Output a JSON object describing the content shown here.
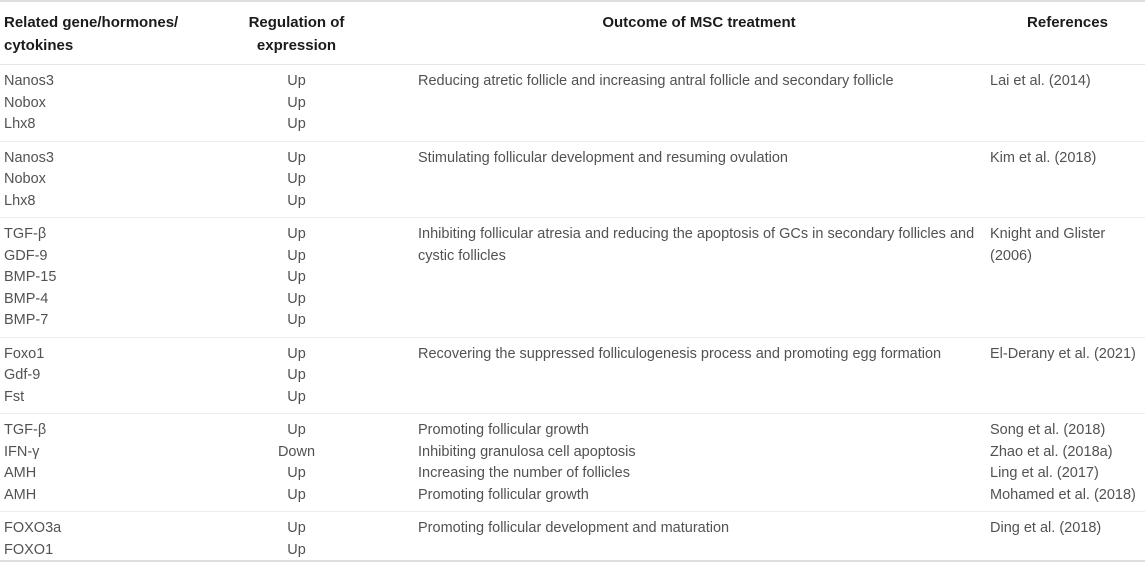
{
  "header": {
    "col1": "Related gene/hormones/\ncytokines",
    "col2": "Regulation of\nexpression",
    "col3": "Outcome of MSC treatment",
    "col4": "References"
  },
  "groups": [
    {
      "genes": [
        "Nanos3",
        "Nobox",
        "Lhx8"
      ],
      "regulation": [
        "Up",
        "Up",
        "Up"
      ],
      "outcomes": [
        "Reducing atretic follicle and increasing antral follicle and secondary follicle"
      ],
      "references": [
        "Lai et al. (2014)"
      ]
    },
    {
      "genes": [
        "Nanos3",
        "Nobox",
        "Lhx8"
      ],
      "regulation": [
        "Up",
        "Up",
        "Up"
      ],
      "outcomes": [
        "Stimulating follicular development and resuming ovulation"
      ],
      "references": [
        "Kim et al. (2018)"
      ]
    },
    {
      "genes": [
        "TGF-β",
        "GDF-9",
        "BMP-15",
        "BMP-4",
        "BMP-7"
      ],
      "regulation": [
        "Up",
        "Up",
        "Up",
        "Up",
        "Up"
      ],
      "outcomes": [
        "Inhibiting follicular atresia and reducing the apoptosis of GCs in secondary follicles and cystic follicles"
      ],
      "references": [
        "Knight and Glister (2006)"
      ]
    },
    {
      "genes": [
        "Foxo1",
        "Gdf-9",
        "Fst"
      ],
      "regulation": [
        "Up",
        "Up",
        "Up"
      ],
      "outcomes": [
        "Recovering the suppressed folliculogenesis process and promoting egg formation"
      ],
      "references": [
        "El-Derany et al. (2021)"
      ]
    },
    {
      "genes": [
        "TGF-β",
        "IFN-γ",
        "AMH",
        "AMH"
      ],
      "regulation": [
        "Up",
        "Down",
        "Up",
        "Up"
      ],
      "outcomes": [
        "Promoting follicular growth",
        "Inhibiting granulosa cell apoptosis",
        "Increasing the number of follicles",
        "Promoting follicular growth"
      ],
      "references": [
        "Song et al. (2018)",
        "Zhao et al. (2018a)",
        "Ling et al. (2017)",
        "Mohamed et al. (2018)"
      ]
    },
    {
      "genes": [
        "FOXO3a",
        "FOXO1"
      ],
      "regulation": [
        "Up",
        "Up"
      ],
      "outcomes": [
        "Promoting follicular development and maturation"
      ],
      "references": [
        "Ding et al. (2018)"
      ]
    }
  ],
  "colors": {
    "background": "#ffffff",
    "header_text": "#1b1b1b",
    "body_text": "#525252",
    "rule_outer": "#dedede",
    "rule_inner": "#ececec"
  }
}
